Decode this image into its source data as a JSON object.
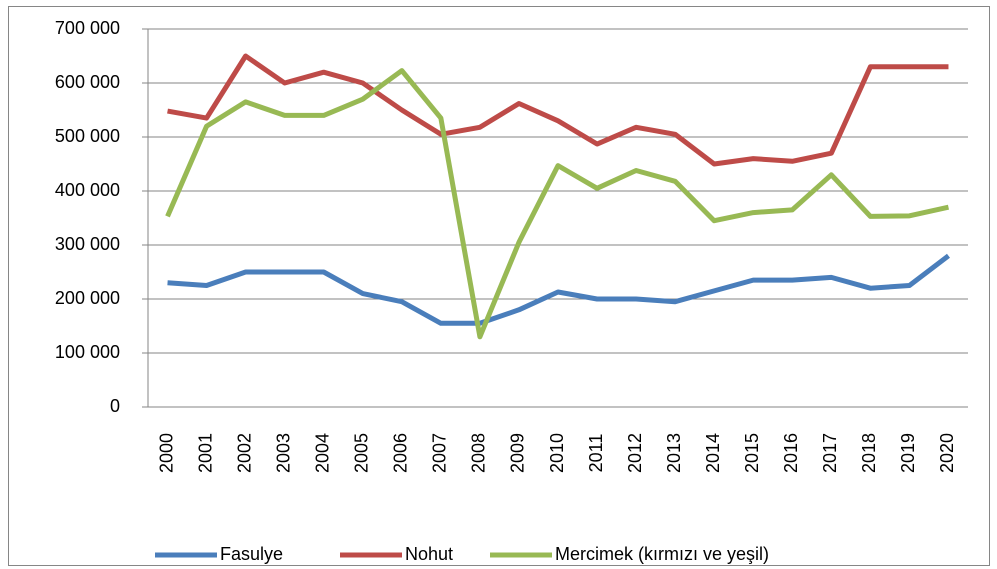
{
  "chart_data": {
    "type": "line",
    "categories": [
      "2000",
      "2001",
      "2002",
      "2003",
      "2004",
      "2005",
      "2006",
      "2007",
      "2008",
      "2009",
      "2010",
      "2011",
      "2012",
      "2013",
      "2014",
      "2015",
      "2016",
      "2017",
      "2018",
      "2019",
      "2020"
    ],
    "series": [
      {
        "name": "Fasulye",
        "color": "#4a7ebb",
        "values": [
          230000,
          225000,
          250000,
          250000,
          250000,
          210000,
          195000,
          155000,
          155000,
          180000,
          213000,
          200000,
          200000,
          195000,
          215000,
          235000,
          235000,
          240000,
          220000,
          225000,
          280000
        ]
      },
      {
        "name": "Nohut",
        "color": "#be4b48",
        "values": [
          548000,
          535000,
          650000,
          600000,
          620000,
          600000,
          550000,
          505000,
          518000,
          562000,
          530000,
          487000,
          518000,
          505000,
          450000,
          460000,
          455000,
          470000,
          630000,
          630000,
          630000
        ]
      },
      {
        "name": "Mercimek (kırmızı ve yeşil)",
        "color": "#98b954",
        "values": [
          353000,
          520000,
          565000,
          540000,
          540000,
          570000,
          623000,
          535000,
          130000,
          305000,
          447000,
          405000,
          438000,
          418000,
          345000,
          360000,
          365000,
          430000,
          353000,
          354000,
          370000
        ]
      }
    ],
    "ylim": [
      0,
      700000
    ],
    "yticks": [
      0,
      {
        "value": 100000,
        "label": "100 000"
      },
      {
        "value": 200000,
        "label": "200 000"
      },
      {
        "value": 300000,
        "label": "300 000"
      },
      {
        "value": 400000,
        "label": "400 000"
      },
      {
        "value": 500000,
        "label": "500 000"
      },
      {
        "value": 600000,
        "label": "600 000"
      },
      {
        "value": 700000,
        "label": "700 000"
      }
    ],
    "grid": true,
    "legend": "bottom"
  }
}
